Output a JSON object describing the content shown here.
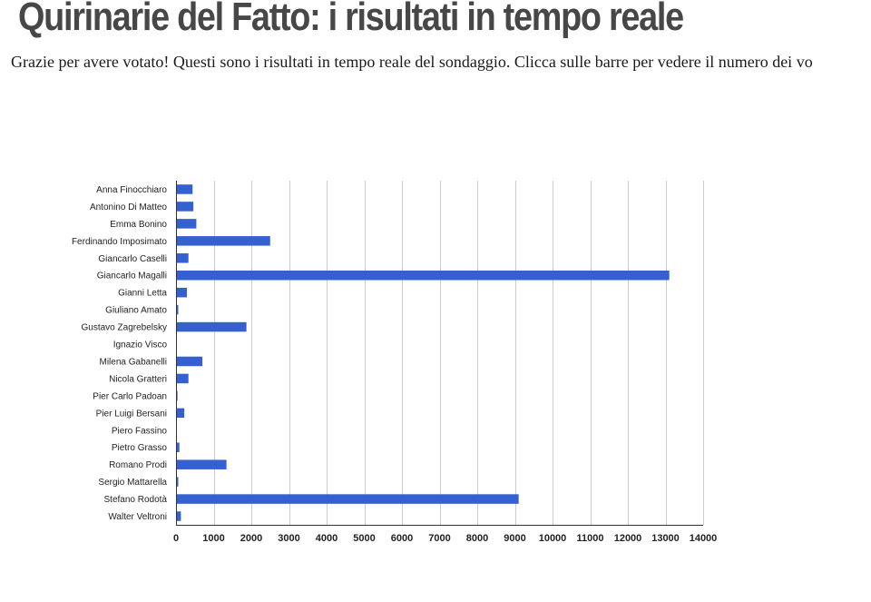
{
  "page": {
    "title": "Quirinarie del Fatto: i risultati in tempo reale",
    "intro": "Grazie per avere votato! Questi sono i risultati in tempo reale del sondaggio. Clicca sulle barre per vedere il numero dei vo"
  },
  "colors": {
    "bar": "#3461cf",
    "grid": "#cccccc",
    "axis": "#333333"
  },
  "chart_data": {
    "type": "bar",
    "orientation": "horizontal",
    "categories": [
      "Anna Finocchiaro",
      "Antonino Di Matteo",
      "Emma Bonino",
      "Ferdinando Imposimato",
      "Giancarlo Caselli",
      "Giancarlo Magalli",
      "Gianni Letta",
      "Giuliano Amato",
      "Gustavo Zagrebelsky",
      "Ignazio Visco",
      "Milena Gabanelli",
      "Nicola Gratteri",
      "Pier Carlo Padoan",
      "Pier Luigi Bersani",
      "Piero Fassino",
      "Pietro Grasso",
      "Romano Prodi",
      "Sergio Mattarella",
      "Stefano Rodotà",
      "Walter Veltroni"
    ],
    "values": [
      440,
      460,
      540,
      2500,
      330,
      13100,
      290,
      60,
      1870,
      10,
      700,
      330,
      40,
      220,
      15,
      90,
      1340,
      60,
      9100,
      130
    ],
    "xlim": [
      0,
      14000
    ],
    "xticks": [
      0,
      1000,
      2000,
      3000,
      4000,
      5000,
      6000,
      7000,
      8000,
      9000,
      10000,
      11000,
      12000,
      13000,
      14000
    ],
    "xtick_labels": [
      "0",
      "1000",
      "2000",
      "3000",
      "4000",
      "5000",
      "6000",
      "7000",
      "8000",
      "9000",
      "10000",
      "11000",
      "12000",
      "13000",
      "14000"
    ],
    "grid": true,
    "legend": "none"
  }
}
